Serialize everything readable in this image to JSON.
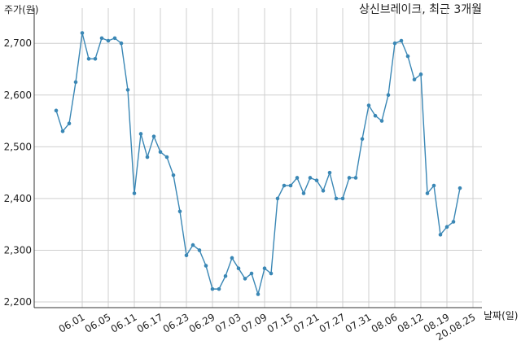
{
  "chart_data": {
    "type": "line",
    "title": "상신브레이크, 최근 3개월",
    "y_label": "주가(원)",
    "x_label": "날짜(일)",
    "categories": [
      null,
      null,
      null,
      null,
      "06.01",
      null,
      null,
      null,
      "06.05",
      null,
      null,
      null,
      "06.11",
      null,
      null,
      null,
      "06.17",
      null,
      null,
      null,
      "06.23",
      null,
      null,
      null,
      "06.29",
      null,
      null,
      null,
      "07.03",
      null,
      null,
      null,
      "07.09",
      null,
      null,
      null,
      "07.15",
      null,
      null,
      null,
      "07.21",
      null,
      null,
      null,
      "07.27",
      null,
      null,
      null,
      "07.31",
      null,
      null,
      null,
      "08.06",
      null,
      null,
      null,
      "08.12",
      null,
      null,
      null,
      "08.19",
      null,
      null,
      null,
      "20.08.25"
    ],
    "series": [
      {
        "name": "주가",
        "color": "#3a87b5",
        "values": [
          2570,
          2530,
          2545,
          2625,
          2720,
          2670,
          2670,
          2710,
          2705,
          2710,
          2700,
          2610,
          2410,
          2525,
          2480,
          2520,
          2490,
          2480,
          2445,
          2375,
          2290,
          2310,
          2300,
          2270,
          2225,
          2225,
          2250,
          2285,
          2265,
          2245,
          2255,
          2215,
          2265,
          2255,
          2400,
          2425,
          2425,
          2440,
          2410,
          2440,
          2435,
          2415,
          2450,
          2400,
          2400,
          2440,
          2440,
          2515,
          2580,
          2560,
          2550,
          2600,
          2700,
          2705,
          2675,
          2630,
          2640,
          2410,
          2425,
          2330,
          2345,
          2355,
          2420,
          null,
          null
        ]
      }
    ],
    "ylim": [
      2189,
      2768
    ],
    "yticks": [
      {
        "value": 2200,
        "label": "2,200"
      },
      {
        "value": 2300,
        "label": "2,300"
      },
      {
        "value": 2400,
        "label": "2,400"
      },
      {
        "value": 2500,
        "label": "2,500"
      },
      {
        "value": 2600,
        "label": "2,600"
      },
      {
        "value": 2700,
        "label": "2,700"
      }
    ],
    "grid": true
  }
}
